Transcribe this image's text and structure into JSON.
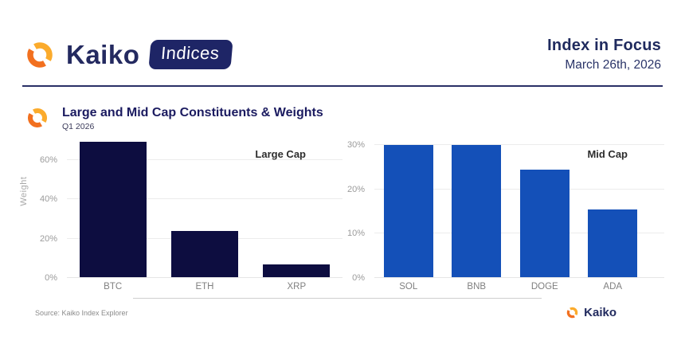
{
  "header": {
    "brand": "Kaiko",
    "badge": "Indices",
    "title": "Index in Focus",
    "date": "March 26th, 2026"
  },
  "chart_header": {
    "title": "Large and Mid Cap Constituents & Weights",
    "subtitle": "Q1 2026"
  },
  "colors": {
    "navy_text": "#1f2a5e",
    "large_cap_bar": "#0d0d40",
    "mid_cap_bar": "#1450b8",
    "gridline": "#ececec",
    "logo_orange": "#f2701f",
    "logo_amber": "#fbab2c"
  },
  "chart_data": [
    {
      "type": "bar",
      "annotation": "Large Cap",
      "categories": [
        "BTC",
        "ETH",
        "XRP"
      ],
      "values": [
        69,
        24,
        7
      ],
      "ylabel": "Weight",
      "yticks": [
        0,
        20,
        40,
        60
      ],
      "ytick_suffix": "%",
      "ylim": [
        0,
        72
      ],
      "grid": true,
      "bar_color": "#0d0d40"
    },
    {
      "type": "bar",
      "annotation": "Mid Cap",
      "categories": [
        "SOL",
        "BNB",
        "DOGE",
        "ADA"
      ],
      "values": [
        30,
        30,
        24.5,
        15.5
      ],
      "ylabel": "",
      "yticks": [
        0,
        10,
        20,
        30
      ],
      "ytick_suffix": "%",
      "ylim": [
        0,
        32
      ],
      "grid": true,
      "bar_color": "#1450b8"
    }
  ],
  "footer": {
    "source": "Source: Kaiko Index Explorer",
    "brand": "Kaiko"
  }
}
